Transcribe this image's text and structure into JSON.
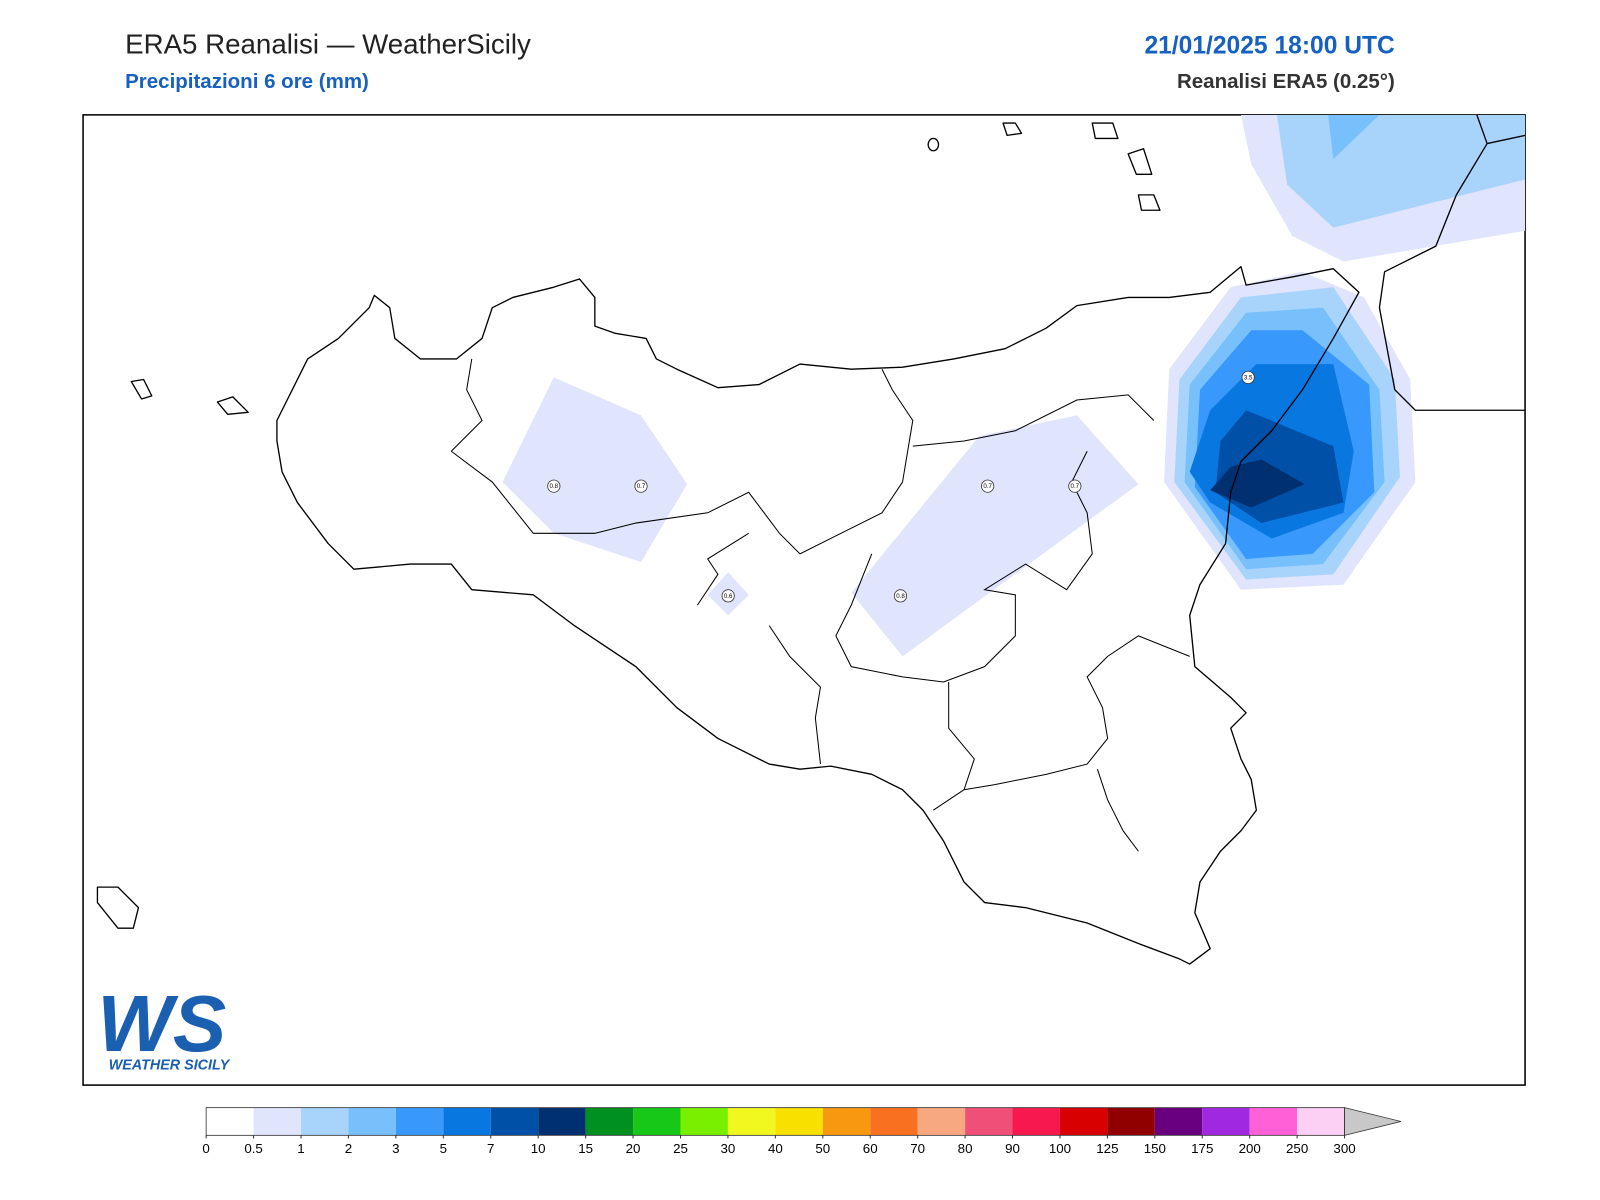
{
  "header": {
    "title": "ERA5 Reanalisi — WeatherSicily",
    "subtitle": "Precipitazioni 6 ore (mm)",
    "datetime": "21/01/2025 18:00 UTC",
    "source": "Reanalisi ERA5 (0.25°)"
  },
  "map": {
    "point_values": [
      0.8,
      0.7,
      0.7,
      0.7,
      0.8,
      0.6,
      3.5
    ]
  },
  "colorbar": {
    "levels": [
      0,
      0.5,
      1,
      2,
      3,
      5,
      7,
      10,
      15,
      20,
      25,
      30,
      40,
      50,
      60,
      70,
      80,
      90,
      100,
      125,
      150,
      175,
      200,
      250,
      300
    ],
    "colors": [
      "#ffffff",
      "#e0e4fc",
      "#a8d4fc",
      "#78c0fc",
      "#3898fc",
      "#0878e0",
      "#0050a8",
      "#003070",
      "#009020",
      "#18c818",
      "#78f000",
      "#f0f820",
      "#f8e000",
      "#f89810",
      "#f87020",
      "#f8a880",
      "#f05078",
      "#f81850",
      "#d80000",
      "#900000",
      "#680080",
      "#a028e0",
      "#ff60d8",
      "#fcd0f4"
    ],
    "extend_color": "#c8c8c8"
  },
  "logo": {
    "mark": "WS",
    "name": "WEATHER SICILY"
  }
}
